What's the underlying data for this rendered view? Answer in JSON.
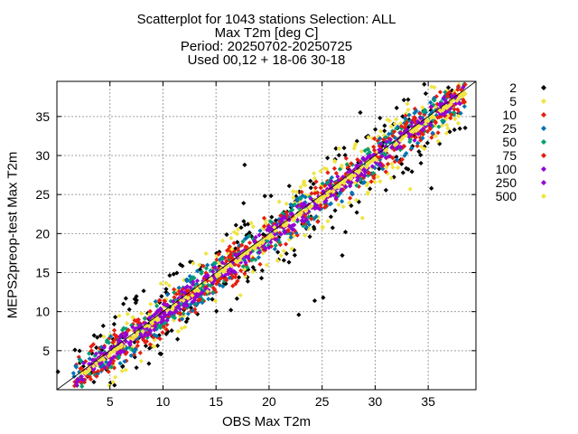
{
  "chart_data": {
    "type": "scatter",
    "title_lines": [
      "Scatterplot for 1043 stations Selection: ALL",
      "Max T2m [deg C]",
      "Period: 20250702-20250725",
      "Used 00,12 + 18-06 30-18"
    ],
    "xlabel": "OBS Max T2m",
    "ylabel": "MEPS2preop-test Max T2m",
    "xlim": [
      0,
      39.5
    ],
    "ylim": [
      0,
      39.5
    ],
    "xticks": [
      5,
      10,
      15,
      20,
      25,
      30,
      35
    ],
    "yticks": [
      5,
      10,
      15,
      20,
      25,
      30,
      35
    ],
    "grid": true,
    "diagonal_line": true,
    "legend_position": "right",
    "legend": [
      {
        "label": "2",
        "color": "#000000"
      },
      {
        "label": "5",
        "color": "#f0e442"
      },
      {
        "label": "10",
        "color": "#e51e10"
      },
      {
        "label": "25",
        "color": "#0072b2"
      },
      {
        "label": "50",
        "color": "#009e73"
      },
      {
        "label": "75",
        "color": "#e51e10"
      },
      {
        "label": "100",
        "color": "#9400d3"
      },
      {
        "label": "250",
        "color": "#9400d3"
      },
      {
        "label": "500",
        "color": "#f0e442"
      }
    ],
    "density_bands": [
      {
        "class": "2",
        "color": "#000000",
        "half_width": 5.2,
        "pairs": [
          [
            0.1,
            2.3
          ],
          [
            1.7,
            5.1
          ],
          [
            3.2,
            2.2
          ],
          [
            5.5,
            9.3
          ],
          [
            6.5,
            11.7
          ],
          [
            13.5,
            15.4
          ],
          [
            17.6,
            23.9
          ],
          [
            16.4,
            10.2
          ],
          [
            17.7,
            28.8
          ],
          [
            19.6,
            24.8
          ],
          [
            21.9,
            26.1
          ],
          [
            22.8,
            9.6
          ],
          [
            25.1,
            11.8
          ],
          [
            26.9,
            17.2
          ],
          [
            27.2,
            20.2
          ],
          [
            28.6,
            35.5
          ],
          [
            30.8,
            31.7
          ],
          [
            33.2,
            34.6
          ],
          [
            35.3,
            25.8
          ],
          [
            36.9,
            38.7
          ],
          [
            38.4,
            39.0
          ],
          [
            26.3,
            30.9
          ],
          [
            24.3,
            11.4
          ]
        ]
      },
      {
        "class": "5",
        "color": "#f0e442",
        "half_width": 4.0,
        "pairs": [
          [
            2.3,
            3.6
          ],
          [
            5.5,
            1.6
          ],
          [
            6.6,
            8.5
          ],
          [
            9.8,
            13.6
          ],
          [
            11.0,
            8.9
          ],
          [
            17.3,
            12.1
          ],
          [
            19.5,
            20.6
          ],
          [
            23.4,
            26.2
          ],
          [
            26.6,
            30.9
          ],
          [
            28.1,
            26.5
          ],
          [
            32.4,
            34.1
          ],
          [
            33.3,
            25.7
          ],
          [
            34.6,
            35.6
          ],
          [
            37.8,
            37.8
          ],
          [
            28.8,
            22.0
          ]
        ]
      },
      {
        "class": "10",
        "color": "#e51e10",
        "half_width": 2.9,
        "pairs": []
      },
      {
        "class": "25",
        "color": "#0072b2",
        "half_width": 2.4,
        "pairs": []
      },
      {
        "class": "50",
        "color": "#009e73",
        "half_width": 2.0,
        "pairs": []
      },
      {
        "class": "75",
        "color": "#e51e10",
        "half_width": 1.7,
        "pairs": []
      },
      {
        "class": "100",
        "color": "#9400d3",
        "half_width": 1.4,
        "pairs": []
      },
      {
        "class": "250",
        "color": "#9400d3",
        "half_width": 0.9,
        "pairs": []
      },
      {
        "class": "500",
        "color": "#f0e442",
        "half_width": 0.3,
        "pairs": [
          [
            14.2,
            12.6
          ],
          [
            16.5,
            18.0
          ],
          [
            18.5,
            20.9
          ],
          [
            20.5,
            20.8
          ],
          [
            22.3,
            24.6
          ]
        ]
      }
    ]
  }
}
